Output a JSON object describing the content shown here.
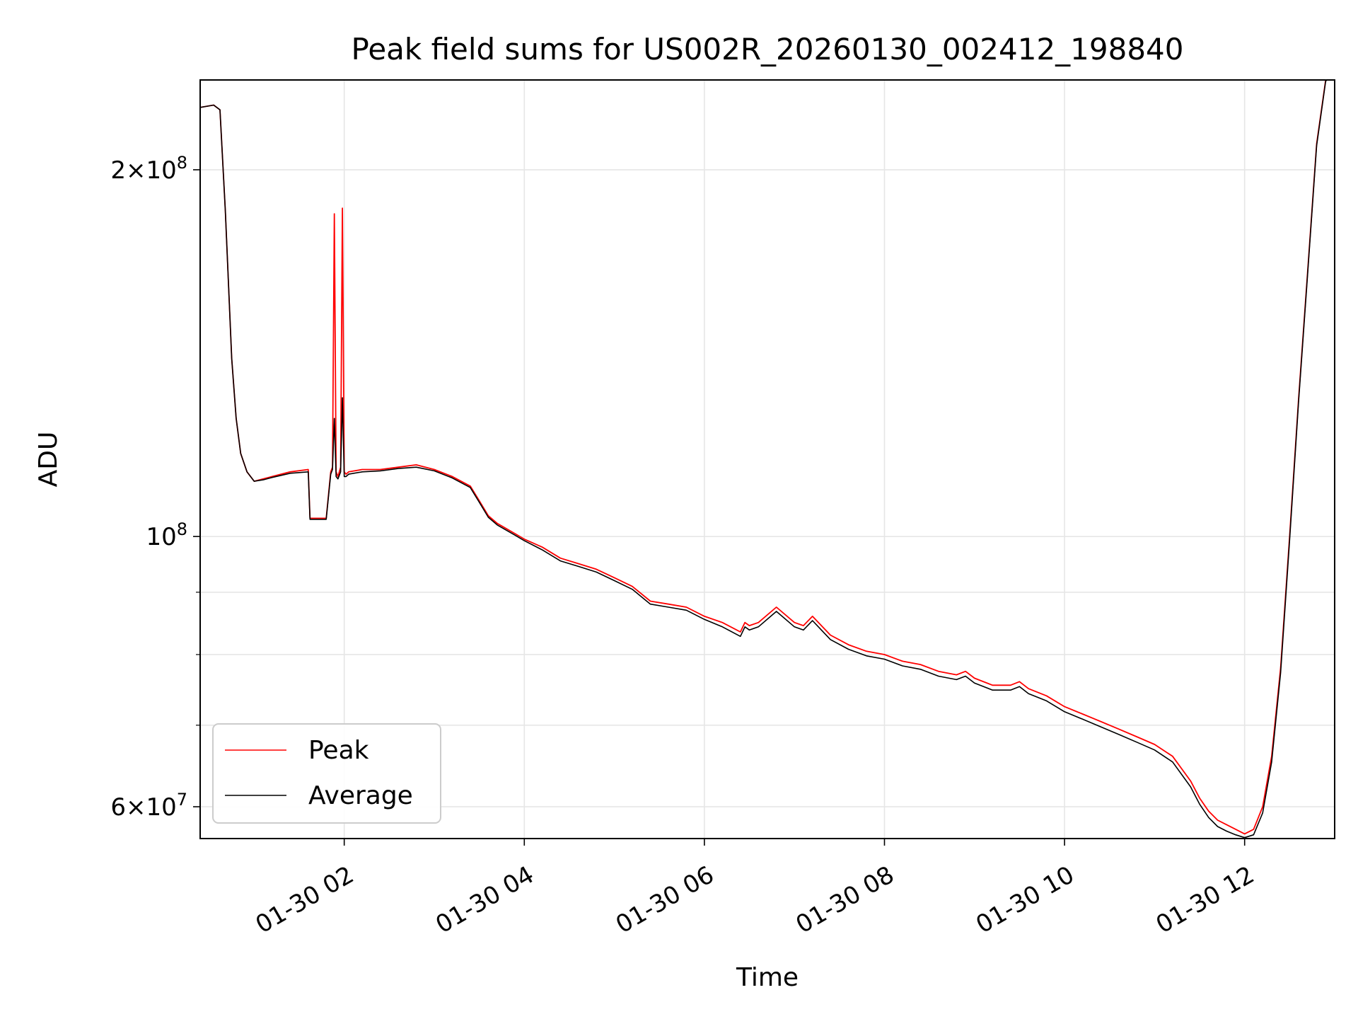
{
  "chart_data": {
    "type": "line",
    "title": "Peak field sums for US002R_20260130_002412_198840",
    "xlabel": "Time",
    "ylabel": "ADU",
    "x_unit": "hours on 2026-01-30",
    "y_scale": "log",
    "xlim": [
      0.4,
      13.0
    ],
    "ylim": [
      56500000,
      237000000
    ],
    "grid": true,
    "legend": {
      "position": "lower-left"
    },
    "x_ticks": [
      {
        "value": 2,
        "label": "01-30 02"
      },
      {
        "value": 4,
        "label": "01-30 04"
      },
      {
        "value": 6,
        "label": "01-30 06"
      },
      {
        "value": 8,
        "label": "01-30 08"
      },
      {
        "value": 10,
        "label": "01-30 10"
      },
      {
        "value": 12,
        "label": "01-30 12"
      }
    ],
    "y_major_ticks": [
      {
        "value": 60000000,
        "mantissa": "6",
        "base": "10",
        "exp": "7"
      },
      {
        "value": 100000000,
        "mantissa": "",
        "base": "10",
        "exp": "8"
      },
      {
        "value": 200000000,
        "mantissa": "2",
        "base": "10",
        "exp": "8"
      }
    ],
    "y_minor_ticks": [
      70000000,
      80000000,
      90000000
    ],
    "series": [
      {
        "name": "Peak",
        "color": "#ff0000",
        "x": [
          0.4,
          0.55,
          0.62,
          0.68,
          0.75,
          0.8,
          0.85,
          0.92,
          1.0,
          1.1,
          1.2,
          1.4,
          1.6,
          1.62,
          1.7,
          1.8,
          1.85,
          1.87,
          1.89,
          1.91,
          1.93,
          1.96,
          1.98,
          2.0,
          2.02,
          2.05,
          2.2,
          2.4,
          2.6,
          2.8,
          3.0,
          3.2,
          3.4,
          3.5,
          3.6,
          3.7,
          3.9,
          4.0,
          4.2,
          4.4,
          4.6,
          4.8,
          5.0,
          5.2,
          5.4,
          5.6,
          5.8,
          6.0,
          6.2,
          6.4,
          6.45,
          6.5,
          6.6,
          6.8,
          7.0,
          7.1,
          7.2,
          7.4,
          7.6,
          7.8,
          8.0,
          8.2,
          8.4,
          8.6,
          8.8,
          8.9,
          9.0,
          9.2,
          9.4,
          9.5,
          9.6,
          9.8,
          10.0,
          10.2,
          10.4,
          10.6,
          10.8,
          11.0,
          11.2,
          11.4,
          11.5,
          11.6,
          11.7,
          11.8,
          11.9,
          12.0,
          12.1,
          12.2,
          12.3,
          12.4,
          12.5,
          12.6,
          12.7,
          12.8,
          12.9,
          13.0
        ],
        "values": [
          225000000,
          226000000,
          224000000,
          185000000,
          140000000,
          125000000,
          117000000,
          113000000,
          111000000,
          111500000,
          112000000,
          113000000,
          113500000,
          103500000,
          103500000,
          103500000,
          113000000,
          114000000,
          184000000,
          113000000,
          112000000,
          114000000,
          186000000,
          113000000,
          112500000,
          113000000,
          113500000,
          113500000,
          114000000,
          114500000,
          113500000,
          112000000,
          110000000,
          107000000,
          104000000,
          102500000,
          100500000,
          99500000,
          98000000,
          96000000,
          95000000,
          94000000,
          92500000,
          91000000,
          88500000,
          88000000,
          87500000,
          86000000,
          85000000,
          83500000,
          85000000,
          84500000,
          85000000,
          87500000,
          85000000,
          84500000,
          86000000,
          83000000,
          81500000,
          80500000,
          80000000,
          79000000,
          78500000,
          77500000,
          77000000,
          77500000,
          76500000,
          75500000,
          75500000,
          76000000,
          75000000,
          74000000,
          72500000,
          71500000,
          70500000,
          69500000,
          68500000,
          67500000,
          66000000,
          63000000,
          61000000,
          59500000,
          58500000,
          58000000,
          57500000,
          57000000,
          57500000,
          60000000,
          66000000,
          78000000,
          100000000,
          130000000,
          165000000,
          210000000,
          237000000,
          240000000
        ]
      },
      {
        "name": "Average",
        "color": "#000000",
        "x": [
          0.4,
          0.55,
          0.62,
          0.68,
          0.75,
          0.8,
          0.85,
          0.92,
          1.0,
          1.1,
          1.2,
          1.4,
          1.6,
          1.62,
          1.7,
          1.8,
          1.85,
          1.87,
          1.89,
          1.91,
          1.93,
          1.96,
          1.98,
          2.0,
          2.02,
          2.05,
          2.2,
          2.4,
          2.6,
          2.8,
          3.0,
          3.2,
          3.4,
          3.5,
          3.6,
          3.7,
          3.9,
          4.0,
          4.2,
          4.4,
          4.6,
          4.8,
          5.0,
          5.2,
          5.4,
          5.6,
          5.8,
          6.0,
          6.2,
          6.4,
          6.45,
          6.5,
          6.6,
          6.8,
          7.0,
          7.1,
          7.2,
          7.4,
          7.6,
          7.8,
          8.0,
          8.2,
          8.4,
          8.6,
          8.8,
          8.9,
          9.0,
          9.2,
          9.4,
          9.5,
          9.6,
          9.8,
          10.0,
          10.2,
          10.4,
          10.6,
          10.8,
          11.0,
          11.2,
          11.4,
          11.5,
          11.6,
          11.7,
          11.8,
          11.9,
          12.0,
          12.1,
          12.2,
          12.3,
          12.4,
          12.5,
          12.6,
          12.7,
          12.8,
          12.9,
          13.0
        ],
        "values": [
          225000000,
          226000000,
          224000000,
          185000000,
          140000000,
          125000000,
          117000000,
          113000000,
          111000000,
          111300000,
          111800000,
          112700000,
          113000000,
          103300000,
          103300000,
          103300000,
          112500000,
          113500000,
          125000000,
          112000000,
          111500000,
          113000000,
          130000000,
          112000000,
          112000000,
          112500000,
          113000000,
          113200000,
          113700000,
          114000000,
          113200000,
          111700000,
          109700000,
          106700000,
          103700000,
          102200000,
          100200000,
          99200000,
          97500000,
          95500000,
          94500000,
          93500000,
          92000000,
          90500000,
          88000000,
          87500000,
          87000000,
          85500000,
          84300000,
          82800000,
          84300000,
          83800000,
          84300000,
          86800000,
          84300000,
          83800000,
          85300000,
          82300000,
          80800000,
          79800000,
          79300000,
          78300000,
          77800000,
          76800000,
          76300000,
          76800000,
          75800000,
          74800000,
          74800000,
          75300000,
          74300000,
          73300000,
          71800000,
          70800000,
          69800000,
          68800000,
          67800000,
          66800000,
          65300000,
          62300000,
          60300000,
          58800000,
          57800000,
          57300000,
          56900000,
          56600000,
          56900000,
          59300000,
          65300000,
          77300000,
          99300000,
          129300000,
          164300000,
          209300000,
          236500000,
          240000000
        ]
      }
    ]
  }
}
